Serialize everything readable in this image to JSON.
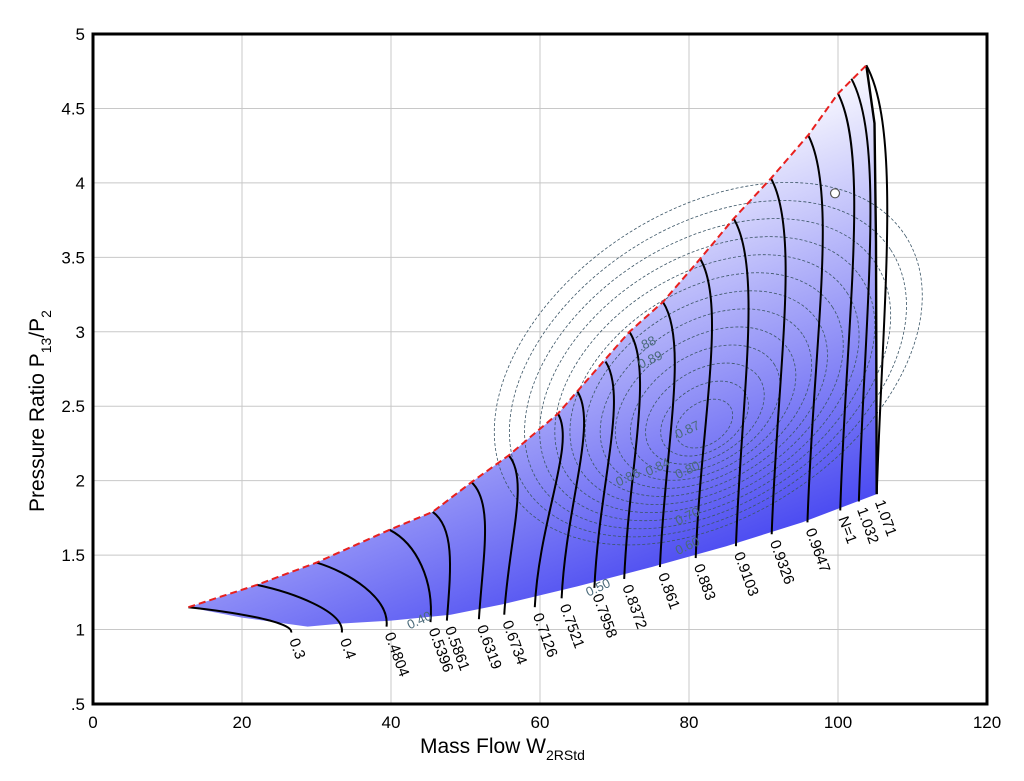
{
  "chart_data": {
    "type": "line",
    "xlabel": "Mass Flow W",
    "xlabel_sub": "2RStd",
    "ylabel": "Pressure Ratio P",
    "ylabel_sub1": "13",
    "ylabel_mid": "/P",
    "ylabel_sub2": "2",
    "xlim": [
      0,
      120
    ],
    "ylim": [
      0.5,
      5
    ],
    "x_ticks": [
      {
        "v": 0,
        "label": "0"
      },
      {
        "v": 20,
        "label": "20"
      },
      {
        "v": 40,
        "label": "40"
      },
      {
        "v": 60,
        "label": "60"
      },
      {
        "v": 80,
        "label": "80"
      },
      {
        "v": 100,
        "label": "100"
      },
      {
        "v": 120,
        "label": "120"
      }
    ],
    "y_ticks": [
      {
        "v": 0.5,
        "label": ".5"
      },
      {
        "v": 1,
        "label": "1"
      },
      {
        "v": 1.5,
        "label": "1.5"
      },
      {
        "v": 2,
        "label": "2"
      },
      {
        "v": 2.5,
        "label": "2.5"
      },
      {
        "v": 3,
        "label": "3"
      },
      {
        "v": 3.5,
        "label": "3.5"
      },
      {
        "v": 4,
        "label": "4"
      },
      {
        "v": 4.5,
        "label": "4.5"
      },
      {
        "v": 5,
        "label": "5"
      }
    ],
    "grid": true,
    "fill_color_dark": "#3a3af0",
    "fill_color_light": "#ffffff",
    "surge_line_color": "#e8201e",
    "surge_line": [
      {
        "x": 12.8,
        "y": 1.15
      },
      {
        "x": 22,
        "y": 1.3
      },
      {
        "x": 30,
        "y": 1.45
      },
      {
        "x": 39.8,
        "y": 1.67
      },
      {
        "x": 45.6,
        "y": 1.79
      },
      {
        "x": 50.8,
        "y": 1.99
      },
      {
        "x": 55.8,
        "y": 2.17
      },
      {
        "x": 62.4,
        "y": 2.45
      },
      {
        "x": 65,
        "y": 2.6
      },
      {
        "x": 72,
        "y": 3.0
      },
      {
        "x": 76.5,
        "y": 3.2
      },
      {
        "x": 81.5,
        "y": 3.49
      },
      {
        "x": 86,
        "y": 3.76
      },
      {
        "x": 91,
        "y": 4.03
      },
      {
        "x": 96,
        "y": 4.32
      },
      {
        "x": 100,
        "y": 4.6
      },
      {
        "x": 103.8,
        "y": 4.79
      }
    ],
    "choke_line": [
      {
        "x": 103.8,
        "y": 4.79
      },
      {
        "x": 104.9,
        "y": 4.4
      },
      {
        "x": 105.1,
        "y": 3.6
      },
      {
        "x": 105.2,
        "y": 1.91
      }
    ],
    "lower_boundary": [
      {
        "x": 105.2,
        "y": 1.91
      },
      {
        "x": 95.2,
        "y": 1.72
      },
      {
        "x": 85,
        "y": 1.56
      },
      {
        "x": 75,
        "y": 1.42
      },
      {
        "x": 65,
        "y": 1.29
      },
      {
        "x": 55,
        "y": 1.17
      },
      {
        "x": 48,
        "y": 1.1
      },
      {
        "x": 40,
        "y": 1.06
      },
      {
        "x": 33.2,
        "y": 1.04
      },
      {
        "x": 28.8,
        "y": 1.02
      },
      {
        "x": 20,
        "y": 1.08
      },
      {
        "x": 12.8,
        "y": 1.15
      }
    ],
    "speed_lines": [
      {
        "label": "0.3",
        "x_top": 12.8,
        "y_top": 1.15,
        "x_bot": 26.6,
        "y_bot": 0.98
      },
      {
        "label": "0.4",
        "x_top": 22,
        "y_top": 1.3,
        "x_bot": 33.4,
        "y_bot": 0.98
      },
      {
        "label": "0.4804",
        "x_top": 30,
        "y_top": 1.45,
        "x_bot": 39.4,
        "y_bot": 1.02
      },
      {
        "label": "0.5396",
        "x_top": 39.8,
        "y_top": 1.67,
        "x_bot": 45.3,
        "y_bot": 1.05
      },
      {
        "label": "0.5861",
        "x_top": 45.6,
        "y_top": 1.79,
        "x_bot": 47.5,
        "y_bot": 1.06
      },
      {
        "label": "0.6319",
        "x_top": 50.8,
        "y_top": 1.99,
        "x_bot": 51.8,
        "y_bot": 1.07
      },
      {
        "label": "0.6734",
        "x_top": 55.8,
        "y_top": 2.17,
        "x_bot": 55.2,
        "y_bot": 1.1
      },
      {
        "label": "0.7126",
        "x_top": 62.4,
        "y_top": 2.45,
        "x_bot": 59.3,
        "y_bot": 1.15
      },
      {
        "label": "0.7521",
        "x_top": 65,
        "y_top": 2.6,
        "x_bot": 62.9,
        "y_bot": 1.21
      },
      {
        "label": "0.7958",
        "x_top": 68.8,
        "y_top": 2.8,
        "x_bot": 67.3,
        "y_bot": 1.28
      },
      {
        "label": "0.8372",
        "x_top": 72,
        "y_top": 3.0,
        "x_bot": 71.3,
        "y_bot": 1.34
      },
      {
        "label": "0.861",
        "x_top": 76.5,
        "y_top": 3.2,
        "x_bot": 76.1,
        "y_bot": 1.42
      },
      {
        "label": "0.883",
        "x_top": 81.5,
        "y_top": 3.49,
        "x_bot": 80.9,
        "y_bot": 1.48
      },
      {
        "label": "0.9103",
        "x_top": 86,
        "y_top": 3.76,
        "x_bot": 86.3,
        "y_bot": 1.56
      },
      {
        "label": "0.9326",
        "x_top": 91,
        "y_top": 4.03,
        "x_bot": 91.1,
        "y_bot": 1.64
      },
      {
        "label": "0.9647",
        "x_top": 96,
        "y_top": 4.32,
        "x_bot": 95.9,
        "y_bot": 1.72
      },
      {
        "label": "N=1",
        "x_top": 100,
        "y_top": 4.6,
        "x_bot": 100.3,
        "y_bot": 1.8
      },
      {
        "label": "1.032",
        "x_top": 101.8,
        "y_top": 4.7,
        "x_bot": 102.8,
        "y_bot": 1.86
      },
      {
        "label": "1.071",
        "x_top": 103.8,
        "y_top": 4.79,
        "x_bot": 105.2,
        "y_bot": 1.91
      }
    ],
    "efficiency_labels": [
      {
        "label": ".88",
        "x": 73.5,
        "y": 2.87
      },
      {
        "label": "0.89",
        "x": 73.5,
        "y": 2.75
      },
      {
        "label": "0.87",
        "x": 78.5,
        "y": 2.28
      },
      {
        "label": "0.86",
        "x": 70.5,
        "y": 1.96
      },
      {
        "label": "0.84",
        "x": 74.5,
        "y": 2.03
      },
      {
        "label": "0.80",
        "x": 78.5,
        "y": 2.01
      },
      {
        "label": "0.70",
        "x": 78.5,
        "y": 1.7
      },
      {
        "label": "0.60",
        "x": 78.5,
        "y": 1.5
      },
      {
        "label": "0.50",
        "x": 66.5,
        "y": 1.22
      },
      {
        "label": "0.40",
        "x": 42.5,
        "y": 1.0
      }
    ],
    "operating_point": {
      "x": 99.6,
      "y": 3.93
    }
  }
}
